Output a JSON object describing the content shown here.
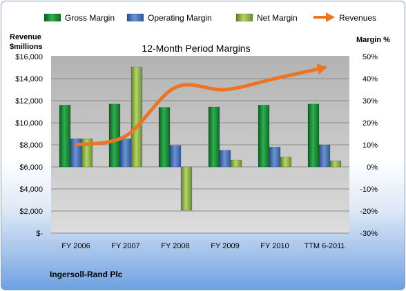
{
  "company": "Ingersoll-Rand Plc",
  "chart_data": {
    "type": "bar",
    "title": "12-Month Period Margins",
    "y_left_label_line1": "Revenue",
    "y_left_label_line2": "$millions",
    "y_right_label": "Margin %",
    "categories": [
      "FY 2006",
      "FY 2007",
      "FY 2008",
      "FY 2009",
      "FY 2010",
      "TTM 6-2011"
    ],
    "y_left_ticks": [
      "$-",
      "$2,000",
      "$4,000",
      "$6,000",
      "$8,000",
      "$10,000",
      "$12,000",
      "$14,000",
      "$16,000"
    ],
    "y_right_ticks": [
      "-30%",
      "-20%",
      "-10%",
      "0%",
      "10%",
      "20%",
      "30%",
      "40%",
      "50%"
    ],
    "y_left_range": [
      0,
      16000
    ],
    "y_right_range": [
      -30,
      50
    ],
    "legend_position": "top",
    "grid": true,
    "margin_series": [
      {
        "name": "Gross Margin",
        "color": "#1f8a3a",
        "values": [
          28,
          28.5,
          27,
          27.2,
          28,
          28.5
        ]
      },
      {
        "name": "Operating Margin",
        "color": "#4a72b8",
        "values": [
          12.8,
          12.8,
          9.7,
          7.5,
          9,
          10
        ]
      },
      {
        "name": "Net Margin",
        "color": "#8fb34a",
        "values": [
          12.8,
          45.3,
          -19.7,
          3.1,
          4.5,
          2.8
        ]
      }
    ],
    "revenue_series": {
      "name": "Revenues",
      "color": "#ec7425",
      "values": [
        8000,
        8800,
        13200,
        13000,
        14000,
        15000
      ]
    }
  }
}
